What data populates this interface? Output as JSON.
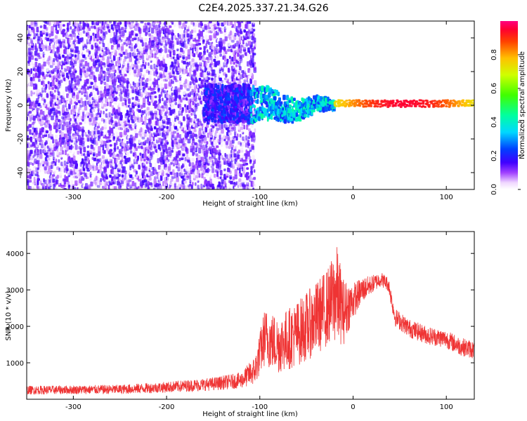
{
  "title": "C2E4.2025.337.21.34.G26",
  "chart_data": [
    {
      "type": "heatmap",
      "panel": "top",
      "xlabel": "Height of straight line (km)",
      "ylabel": "Frequency (Hz)",
      "xlim": [
        -350,
        130
      ],
      "ylim": [
        -50,
        50
      ],
      "x_ticks": [
        -300,
        -200,
        -100,
        0,
        100
      ],
      "y_ticks": [
        -40,
        -20,
        0,
        20,
        40
      ],
      "colorbar": {
        "label": "Normalized spectral amplitude",
        "range": [
          0,
          1
        ],
        "ticks": [
          0.0,
          0.2,
          0.4,
          0.6,
          0.8
        ]
      },
      "description_regions": [
        {
          "x_range": [
            -350,
            -105
          ],
          "freq_range": [
            -50,
            50
          ],
          "amplitude": [
            0.0,
            0.15
          ]
        },
        {
          "x_range": [
            -160,
            -110
          ],
          "freq_range": [
            -10,
            12
          ],
          "amplitude": [
            0.1,
            0.25
          ]
        },
        {
          "x_range": [
            -110,
            -20
          ],
          "freq_range": [
            -10,
            8
          ],
          "amplitude": [
            0.2,
            0.45
          ]
        },
        {
          "x_range": [
            -20,
            130
          ],
          "freq_range": [
            -1,
            3
          ],
          "amplitude": [
            0.55,
            0.95
          ]
        }
      ]
    },
    {
      "type": "line",
      "panel": "bottom",
      "xlabel": "Height of straight line (km)",
      "ylabel": "SNR (10 * v/v)",
      "xlim": [
        -350,
        130
      ],
      "ylim": [
        0,
        4600
      ],
      "x_ticks": [
        -300,
        -200,
        -100,
        0,
        100
      ],
      "y_ticks": [
        1000,
        2000,
        3000,
        4000
      ],
      "color": "#ef3434",
      "series": [
        {
          "name": "SNR",
          "x": [
            -350,
            -300,
            -250,
            -200,
            -150,
            -120,
            -105,
            -95,
            -80,
            -60,
            -40,
            -25,
            -18,
            -10,
            0,
            10,
            20,
            30,
            38,
            45,
            60,
            80,
            100,
            115,
            130
          ],
          "y": [
            250,
            260,
            270,
            330,
            420,
            520,
            800,
            1700,
            1500,
            1800,
            2200,
            2600,
            2900,
            2400,
            2700,
            3000,
            3150,
            3300,
            3150,
            2250,
            1950,
            1750,
            1650,
            1450,
            1350
          ],
          "spread": [
            120,
            120,
            130,
            150,
            180,
            220,
            400,
            800,
            800,
            900,
            1000,
            1100,
            1400,
            900,
            500,
            350,
            250,
            200,
            200,
            250,
            250,
            250,
            250,
            250,
            250
          ]
        }
      ]
    }
  ]
}
